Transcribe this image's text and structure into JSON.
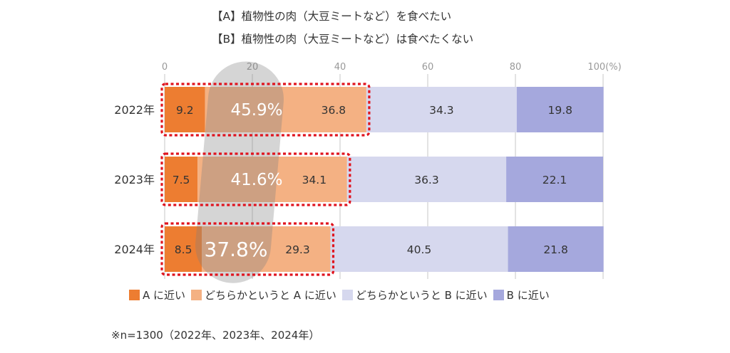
{
  "chart_data": {
    "type": "bar",
    "orientation": "horizontal-stacked",
    "title_lines": [
      "【A】植物性の肉（大豆ミートなど）を食べたい",
      "【B】植物性の肉（大豆ミートなど）は食べたくない"
    ],
    "x_ticks": [
      "0",
      "20",
      "40",
      "60",
      "80",
      "100(%)"
    ],
    "xlim": [
      0,
      100
    ],
    "grid": true,
    "categories": [
      "2022年",
      "2023年",
      "2024年"
    ],
    "series": [
      {
        "name": "A に近い",
        "color": "#ED7D31",
        "values": [
          9.2,
          7.5,
          8.5
        ]
      },
      {
        "name": "どちらかというと A に近い",
        "color": "#F4B183",
        "values": [
          36.8,
          34.1,
          29.3
        ]
      },
      {
        "name": "どちらかというと B に近い",
        "color": "#D6D8EE",
        "values": [
          34.3,
          36.3,
          40.5
        ]
      },
      {
        "name": "B に近い",
        "color": "#A5A8DD",
        "values": [
          19.8,
          22.1,
          21.8
        ]
      }
    ],
    "highlight_totals": [
      "45.9%",
      "41.6%",
      "37.8%"
    ],
    "highlight_color": "#E0141E",
    "legend_position": "bottom",
    "note": "※n=1300（2022年、2023年、2024年）"
  }
}
